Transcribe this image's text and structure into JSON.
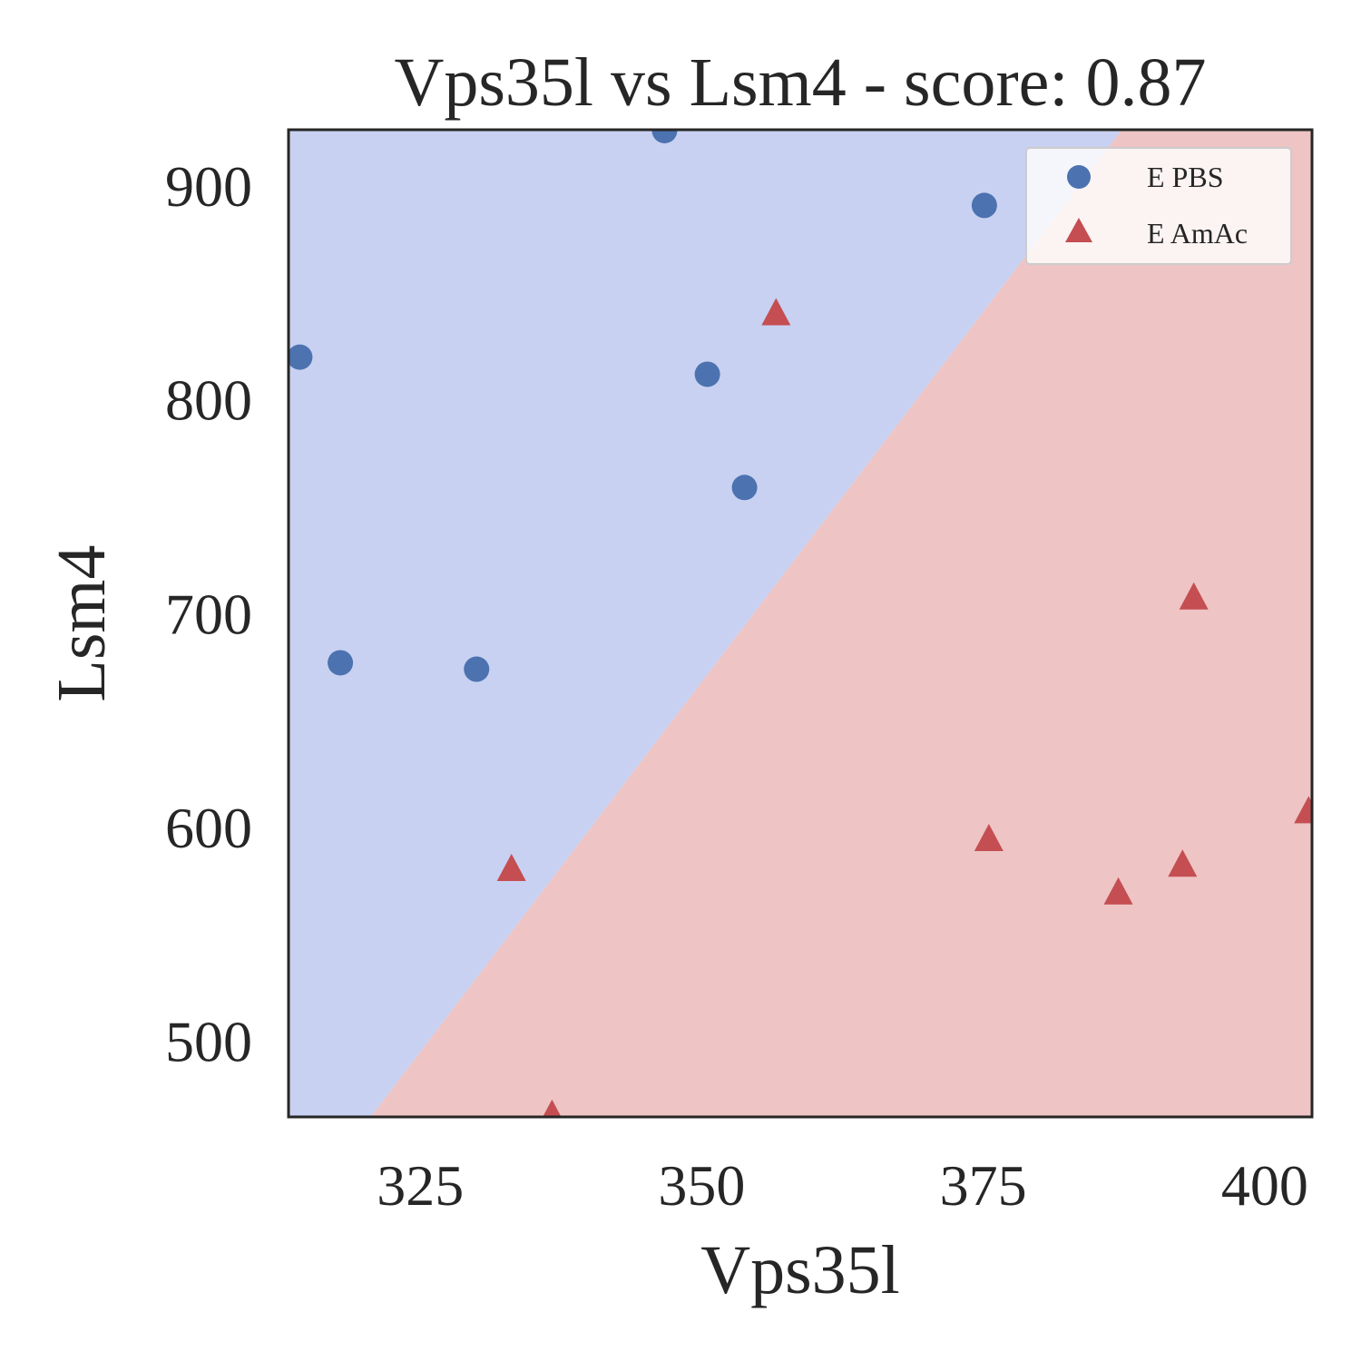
{
  "chart_data": {
    "type": "scatter",
    "title": "Vps35l vs Lsm4 - score: 0.87",
    "xlabel": "Vps35l",
    "ylabel": "Lsm4",
    "xlim": [
      313.3,
      404.2
    ],
    "ylim": [
      464.5,
      926.4
    ],
    "xticks": [
      325,
      350,
      375,
      400
    ],
    "yticks": [
      500,
      600,
      700,
      800,
      900
    ],
    "grid": false,
    "legend_position": "top-right",
    "decision_boundary": {
      "line": [
        [
          320.6,
          464.5
        ],
        [
          387.3,
          926.4
        ]
      ],
      "upper_left_region_color": "#c8d1f1",
      "lower_right_region_color": "#eec4c4"
    },
    "series": [
      {
        "name": "E PBS",
        "marker": "circle",
        "color": "#4c72b0",
        "points": [
          [
            314.3,
            820
          ],
          [
            317.9,
            677
          ],
          [
            330.0,
            674
          ],
          [
            346.7,
            926
          ],
          [
            350.5,
            812
          ],
          [
            353.8,
            759
          ],
          [
            375.1,
            891
          ]
        ]
      },
      {
        "name": "E AmAc",
        "marker": "triangle",
        "color": "#c44e52",
        "points": [
          [
            356.6,
            840
          ],
          [
            333.1,
            580
          ],
          [
            336.7,
            465
          ],
          [
            375.5,
            594
          ],
          [
            387.0,
            569
          ],
          [
            392.7,
            582
          ],
          [
            393.7,
            707
          ],
          [
            403.9,
            607
          ]
        ]
      }
    ]
  }
}
